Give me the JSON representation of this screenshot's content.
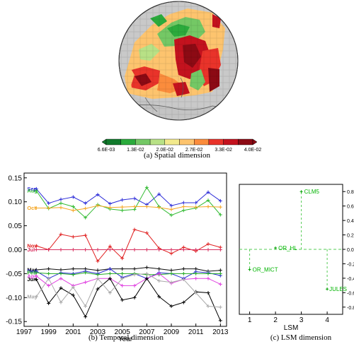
{
  "captions": {
    "a": "(a) Spatial dimension",
    "b": "(b) Temporal dimension",
    "c": "(c) LSM dimension"
  },
  "colorbar": {
    "ticks": [
      "6.6E-03",
      "1.3E-02",
      "2.0E-02",
      "2.7E-02",
      "3.3E-02",
      "4.0E-02"
    ],
    "colors": [
      "#117a2c",
      "#2bab3c",
      "#74c865",
      "#b8e186",
      "#f2e98c",
      "#fdc46e",
      "#fb8c3c",
      "#e9332a",
      "#c4121e",
      "#8c0a14"
    ]
  },
  "chart_data": [
    {
      "type": "line",
      "panel": "b",
      "xlabel": "Year",
      "ylabel": "",
      "x": [
        1998,
        1999,
        2000,
        2001,
        2002,
        2003,
        2004,
        2005,
        2006,
        2007,
        2008,
        2009,
        2010,
        2011,
        2012,
        2013
      ],
      "xticks": [
        1997,
        1999,
        2001,
        2003,
        2005,
        2007,
        2009,
        2011,
        2013
      ],
      "yticks": [
        0.15,
        0.1,
        0.05,
        0.0,
        -0.05,
        -0.1,
        -0.15
      ],
      "ylim": [
        -0.16,
        0.16
      ],
      "xlim": [
        1997,
        2013.5
      ],
      "series": [
        {
          "name": "Sep",
          "color": "#2b2bd8",
          "values": [
            0.127,
            0.097,
            0.105,
            0.11,
            0.097,
            0.115,
            0.096,
            0.104,
            0.107,
            0.094,
            0.116,
            0.092,
            0.098,
            0.098,
            0.12,
            0.102
          ]
        },
        {
          "name": "Aug",
          "color": "#33bb33",
          "values": [
            0.123,
            0.086,
            0.097,
            0.09,
            0.067,
            0.094,
            0.085,
            0.082,
            0.084,
            0.13,
            0.09,
            0.072,
            0.082,
            0.087,
            0.103,
            0.073
          ]
        },
        {
          "name": "Oct",
          "color": "#f5a623",
          "values": [
            0.087,
            0.087,
            0.088,
            0.082,
            0.086,
            0.092,
            0.088,
            0.089,
            0.09,
            0.09,
            0.088,
            0.084,
            0.09,
            0.089,
            0.09,
            0.089
          ]
        },
        {
          "name": "Nov",
          "color": "#e02020",
          "values": [
            0.008,
            0.0,
            0.032,
            0.027,
            0.03,
            -0.024,
            0.007,
            -0.018,
            0.042,
            0.035,
            0.003,
            -0.008,
            0.005,
            -0.003,
            0.012,
            0.005
          ]
        },
        {
          "name": "Jul",
          "color": "#d83060",
          "values": [
            0.0,
            0.0,
            0.0,
            0.0,
            0.0,
            0.0,
            0.0,
            0.0,
            0.0,
            0.0,
            0.0,
            0.0,
            0.0,
            0.0,
            0.0,
            0.0
          ]
        },
        {
          "name": "Mar",
          "color": "#111111",
          "values": [
            -0.042,
            -0.04,
            -0.042,
            -0.04,
            -0.04,
            -0.043,
            -0.04,
            -0.04,
            -0.04,
            -0.037,
            -0.04,
            -0.043,
            -0.04,
            -0.04,
            -0.045,
            -0.043
          ]
        },
        {
          "name": "Dec",
          "color": "#2a2ad0",
          "values": [
            -0.045,
            -0.06,
            -0.048,
            -0.05,
            -0.045,
            -0.05,
            -0.04,
            -0.058,
            -0.05,
            -0.06,
            -0.048,
            -0.05,
            -0.06,
            -0.046,
            -0.048,
            -0.054
          ]
        },
        {
          "name": "Feb",
          "color": "#22aa22",
          "values": [
            -0.048,
            -0.05,
            -0.05,
            -0.052,
            -0.048,
            -0.052,
            -0.05,
            -0.05,
            -0.05,
            -0.052,
            -0.052,
            -0.05,
            -0.05,
            -0.05,
            -0.05,
            -0.05
          ]
        },
        {
          "name": "Apr",
          "color": "#e040e0",
          "values": [
            -0.055,
            -0.075,
            -0.06,
            -0.075,
            -0.068,
            -0.06,
            -0.06,
            -0.075,
            -0.075,
            -0.06,
            -0.05,
            -0.07,
            -0.062,
            -0.06,
            -0.06,
            -0.072
          ]
        },
        {
          "name": "Jun",
          "color": "#000000",
          "values": [
            -0.062,
            -0.112,
            -0.08,
            -0.095,
            -0.14,
            -0.082,
            -0.06,
            -0.105,
            -0.1,
            -0.06,
            -0.098,
            -0.118,
            -0.11,
            -0.088,
            -0.09,
            -0.148
          ]
        },
        {
          "name": "May",
          "color": "#aaaaaa",
          "values": [
            -0.098,
            -0.06,
            -0.11,
            -0.078,
            -0.118,
            -0.06,
            -0.09,
            -0.06,
            -0.052,
            -0.05,
            -0.065,
            -0.068,
            -0.062,
            -0.09,
            -0.118,
            -0.12
          ]
        }
      ]
    },
    {
      "type": "scatter",
      "panel": "c",
      "xlabel": "LSM",
      "ylabel": "",
      "xticks": [
        1,
        2,
        3,
        4
      ],
      "yticks": [
        0.8,
        0.6,
        0.4,
        0.2,
        0.0,
        -0.2,
        -0.4,
        -0.6,
        -0.8
      ],
      "xlim": [
        0.6,
        4.6
      ],
      "ylim": [
        -0.9,
        0.9
      ],
      "points": [
        {
          "label": "CLM5",
          "x": 3,
          "y": 0.8
        },
        {
          "label": "OR_HL",
          "x": 2,
          "y": 0.02
        },
        {
          "label": "OR_MICT",
          "x": 1,
          "y": -0.28
        },
        {
          "label": "JULES",
          "x": 4,
          "y": -0.55
        }
      ]
    }
  ]
}
